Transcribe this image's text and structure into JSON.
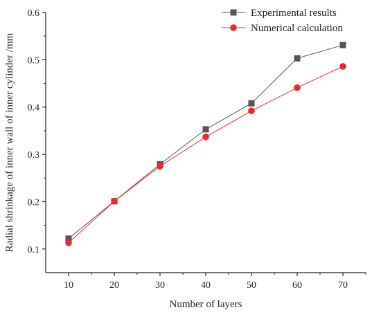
{
  "chart_data": {
    "type": "line",
    "title": "",
    "xlabel": "Number of layers",
    "ylabel": "Radial shrinkage of inner wall of inner cylinder /mm",
    "xlim": [
      5,
      75
    ],
    "ylim": [
      0.05,
      0.6
    ],
    "x_ticks": [
      "10",
      "20",
      "30",
      "40",
      "50",
      "60",
      "70"
    ],
    "y_ticks": [
      "0.1",
      "0.2",
      "0.3",
      "0.4",
      "0.5",
      "0.6"
    ],
    "x": [
      10,
      20,
      30,
      40,
      50,
      60,
      70
    ],
    "grid": false,
    "legend_position": "top-right",
    "series": [
      {
        "name": "Experimental results",
        "values": [
          0.122,
          0.201,
          0.279,
          0.353,
          0.408,
          0.503,
          0.531
        ],
        "color": "#555555",
        "marker": "square"
      },
      {
        "name": "Numerical calculation",
        "values": [
          0.113,
          0.201,
          0.275,
          0.337,
          0.392,
          0.441,
          0.486
        ],
        "color": "#f0282d",
        "marker": "circle"
      }
    ]
  }
}
